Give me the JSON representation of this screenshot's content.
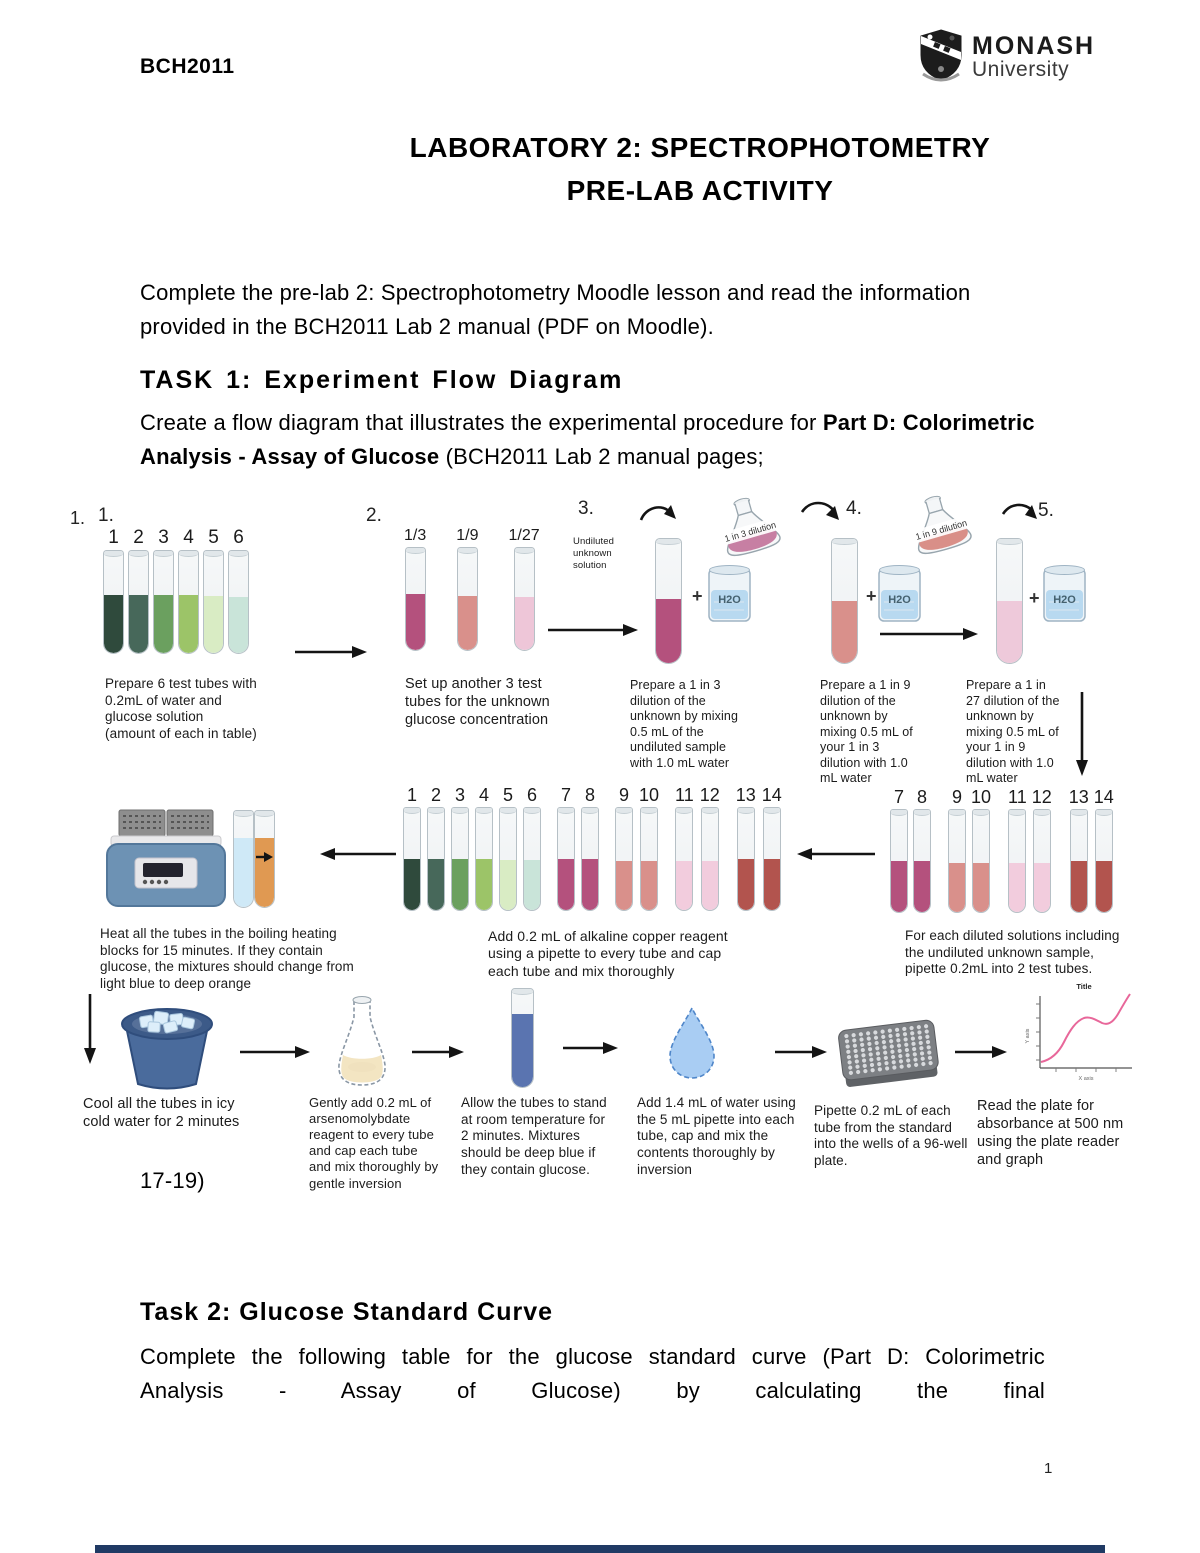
{
  "header": {
    "course_code": "BCH2011",
    "logo": {
      "name": "MONASH",
      "subname": "University"
    }
  },
  "title": {
    "line1": "LABORATORY 2: SPECTROPHOTOMETRY",
    "line2": "PRE-LAB ACTIVITY"
  },
  "intro": {
    "text": "Complete the pre-lab 2: Spectrophotometry Moodle lesson and read the information provided in the BCH2011 Lab 2 manual (PDF on Moodle)."
  },
  "task1": {
    "heading": "TASK 1: Experiment Flow Diagram",
    "body_prefix": "Create a flow diagram that illustrates the experimental procedure for ",
    "body_bold": "Part D: Colorimetric Analysis - Assay of Glucose",
    "body_suffix": " (BCH2011 Lab 2 manual pages;",
    "pages_continued": "17-19)"
  },
  "task2": {
    "heading": "Task 2: Glucose Standard Curve",
    "body": "Complete the following table for the glucose standard curve (Part D: Colorimetric Analysis - Assay of Glucose) by calculating the final"
  },
  "footer": {
    "page_number": "1"
  },
  "diagram": {
    "outer_number": "1.",
    "plus_sign": "+",
    "beaker_label": "H2O",
    "step1": {
      "number": "1.",
      "caption": "Prepare 6 test tubes with 0.2mL of water and glucose solution (amount of each in table)",
      "tubes": [
        {
          "label": "1",
          "color": "#2F4A3C",
          "fill": 57
        },
        {
          "label": "2",
          "color": "#47685A",
          "fill": 57
        },
        {
          "label": "3",
          "color": "#6BA05F",
          "fill": 57
        },
        {
          "label": "4",
          "color": "#9CC468",
          "fill": 57
        },
        {
          "label": "5",
          "color": "#D9ECC4",
          "fill": 56
        },
        {
          "label": "6",
          "color": "#C9E4D9",
          "fill": 55
        }
      ]
    },
    "step2": {
      "number": "2.",
      "caption": "Set up another 3 test tubes for the unknown glucose concentration",
      "tubes": [
        {
          "label": "1/3",
          "color": "#B4517D",
          "fill": 55
        },
        {
          "label": "1/9",
          "color": "#D9908B",
          "fill": 53
        },
        {
          "label": "1/27",
          "color": "#EEC6D8",
          "fill": 52
        }
      ]
    },
    "step3": {
      "number": "3.",
      "source_label": "Undiluted unknown solution",
      "flask_label": "1 in 3 dilution",
      "flask_liquid_color": "#C77FA3",
      "caption": "Prepare a 1 in 3 dilution of the unknown by mixing 0.5 mL of the undiluted sample with 1.0 mL water",
      "tube": [
        {
          "label": "",
          "color": "#B4517D",
          "fill": 52
        }
      ]
    },
    "step4": {
      "number": "4.",
      "flask_label": "1 in 9 dilution",
      "flask_liquid_color": "#D98F88",
      "caption": "Prepare a 1 in 9 dilution of the unknown by mixing 0.5 mL of your 1 in 3 dilution with 1.0 mL water",
      "tube": [
        {
          "label": "",
          "color": "#D9908B",
          "fill": 50
        }
      ]
    },
    "step5": {
      "number": "5.",
      "caption": "Prepare a 1 in 27 dilution of the unknown by mixing 0.5 mL of your 1 in 9 dilution with 1.0 mL water",
      "tube": [
        {
          "label": "",
          "color": "#EEC9DA",
          "fill": 50
        }
      ]
    },
    "pipette_step": {
      "caption": "For each diluted solutions including the undiluted unknown sample, pipette 0.2mL into 2 test tubes.",
      "tubes": [
        {
          "label": "7",
          "color": "#B4517D",
          "fill": 50
        },
        {
          "label": "8",
          "color": "#B4517D",
          "fill": 50
        },
        {
          "label": "9",
          "color": "#D9908B",
          "fill": 48
        },
        {
          "label": "10",
          "color": "#D9908B",
          "fill": 48
        },
        {
          "label": "11",
          "color": "#F2CCDD",
          "fill": 48
        },
        {
          "label": "12",
          "color": "#F2CCDD",
          "fill": 48
        },
        {
          "label": "13",
          "color": "#B2544E",
          "fill": 50
        },
        {
          "label": "14",
          "color": "#B2544E",
          "fill": 50
        }
      ]
    },
    "copper_step": {
      "caption": "Add 0.2 mL of alkaline copper reagent using a pipette to every tube and cap each tube and mix thoroughly",
      "tubes": [
        {
          "label": "1",
          "color": "#2F4A3C",
          "fill": 50
        },
        {
          "label": "2",
          "color": "#47685A",
          "fill": 50
        },
        {
          "label": "3",
          "color": "#6BA05F",
          "fill": 50
        },
        {
          "label": "4",
          "color": "#9CC468",
          "fill": 50
        },
        {
          "label": "5",
          "color": "#D9ECC4",
          "fill": 49
        },
        {
          "label": "6",
          "color": "#C9E4D9",
          "fill": 49
        },
        {
          "label": "7",
          "color": "#B4517D",
          "fill": 50
        },
        {
          "label": "8",
          "color": "#B4517D",
          "fill": 50
        },
        {
          "label": "9",
          "color": "#D9908B",
          "fill": 48
        },
        {
          "label": "10",
          "color": "#D9908B",
          "fill": 48
        },
        {
          "label": "11",
          "color": "#F2CCDD",
          "fill": 48
        },
        {
          "label": "12",
          "color": "#F2CCDD",
          "fill": 48
        },
        {
          "label": "13",
          "color": "#B2544E",
          "fill": 50
        },
        {
          "label": "14",
          "color": "#B2544E",
          "fill": 50
        }
      ]
    },
    "heat_step": {
      "caption": "Heat all the tubes in the boiling heating blocks for 15 minutes. If they contain glucose, the mixtures should change from light blue to deep orange",
      "tubes": [
        {
          "label": "",
          "color": "#CFE9F7",
          "fill": 72
        },
        {
          "label": "",
          "color": "#E09952",
          "fill": 72
        }
      ]
    },
    "cool_step": {
      "caption": "Cool all the tubes in icy cold water for 2 minutes"
    },
    "arseno_step": {
      "caption": "Gently add 0.2 mL of arsenomolybdate reagent to every tube and cap each tube and mix thoroughly by gentle inversion"
    },
    "stand_step": {
      "caption": "Allow the tubes to stand at room temperature for 2 minutes. Mixtures should be deep blue if they contain glucose.",
      "tube": [
        {
          "label": "",
          "color": "#5A74B0",
          "fill": 74
        }
      ]
    },
    "water_step": {
      "caption": "Add 1.4 mL of water using the 5 mL pipette into each tube, cap and mix the contents thoroughly by inversion"
    },
    "plate_step": {
      "caption": "Pipette 0.2 mL of each tube from the standard into the wells of a 96-well plate."
    },
    "read_step": {
      "caption": "Read the plate for absorbance at 500 nm using the plate reader and graph",
      "graph_title": "Title",
      "graph_y_label": "Y axis",
      "graph_x_label": "X axis"
    }
  }
}
